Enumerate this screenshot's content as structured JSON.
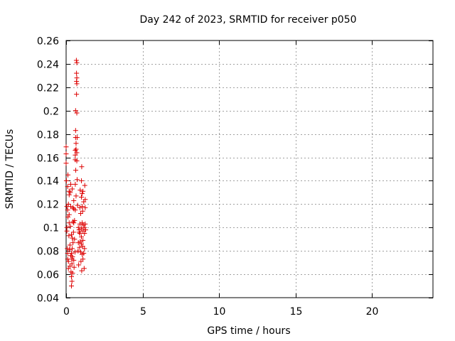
{
  "chart_data": {
    "type": "scatter",
    "title": "Day 242 of 2023, SRMTID for receiver p050",
    "xlabel": "GPS time / hours",
    "ylabel": "SRMTID / TECUs",
    "xlim": [
      0,
      24
    ],
    "ylim": [
      0.04,
      0.26
    ],
    "xticks": [
      0,
      5,
      10,
      15,
      20
    ],
    "yticks": [
      0.04,
      0.06,
      0.08,
      0.1,
      0.12,
      0.14,
      0.16,
      0.18,
      0.2,
      0.22,
      0.24,
      0.26
    ],
    "grid": true,
    "marker": "+",
    "series": [
      {
        "color": "#dd0000",
        "points": [
          [
            0.0,
            0.169
          ],
          [
            0.0,
            0.163
          ],
          [
            0.0,
            0.155
          ],
          [
            0.02,
            0.14
          ],
          [
            0.05,
            0.118
          ],
          [
            0.05,
            0.1
          ],
          [
            0.05,
            0.097
          ],
          [
            0.08,
            0.082
          ],
          [
            0.1,
            0.135
          ],
          [
            0.1,
            0.115
          ],
          [
            0.1,
            0.078
          ],
          [
            0.1,
            0.073
          ],
          [
            0.12,
            0.145
          ],
          [
            0.12,
            0.109
          ],
          [
            0.15,
            0.12
          ],
          [
            0.15,
            0.071
          ],
          [
            0.15,
            0.065
          ],
          [
            0.18,
            0.093
          ],
          [
            0.2,
            0.131
          ],
          [
            0.2,
            0.128
          ],
          [
            0.2,
            0.111
          ],
          [
            0.2,
            0.104
          ],
          [
            0.22,
            0.081
          ],
          [
            0.25,
            0.085
          ],
          [
            0.25,
            0.067
          ],
          [
            0.27,
            0.13
          ],
          [
            0.28,
            0.101
          ],
          [
            0.3,
            0.137
          ],
          [
            0.3,
            0.118
          ],
          [
            0.3,
            0.076
          ],
          [
            0.32,
            0.062
          ],
          [
            0.35,
            0.094
          ],
          [
            0.35,
            0.078
          ],
          [
            0.35,
            0.058
          ],
          [
            0.35,
            0.05
          ],
          [
            0.37,
            0.073
          ],
          [
            0.38,
            0.069
          ],
          [
            0.38,
            0.054
          ],
          [
            0.4,
            0.133
          ],
          [
            0.4,
            0.091
          ],
          [
            0.4,
            0.082
          ],
          [
            0.42,
            0.075
          ],
          [
            0.42,
            0.061
          ],
          [
            0.45,
            0.117
          ],
          [
            0.45,
            0.105
          ],
          [
            0.45,
            0.087
          ],
          [
            0.48,
            0.096
          ],
          [
            0.5,
            0.123
          ],
          [
            0.5,
            0.116
          ],
          [
            0.5,
            0.104
          ],
          [
            0.5,
            0.072
          ],
          [
            0.52,
            0.066
          ],
          [
            0.55,
            0.106
          ],
          [
            0.55,
            0.09
          ],
          [
            0.58,
            0.079
          ],
          [
            0.6,
            0.166
          ],
          [
            0.6,
            0.162
          ],
          [
            0.6,
            0.158
          ],
          [
            0.6,
            0.137
          ],
          [
            0.6,
            0.115
          ],
          [
            0.62,
            0.2
          ],
          [
            0.62,
            0.183
          ],
          [
            0.62,
            0.177
          ],
          [
            0.63,
            0.149
          ],
          [
            0.65,
            0.172
          ],
          [
            0.65,
            0.167
          ],
          [
            0.65,
            0.127
          ],
          [
            0.67,
            0.243
          ],
          [
            0.68,
            0.232
          ],
          [
            0.68,
            0.225
          ],
          [
            0.68,
            0.214
          ],
          [
            0.7,
            0.241
          ],
          [
            0.7,
            0.228
          ],
          [
            0.7,
            0.223
          ],
          [
            0.7,
            0.198
          ],
          [
            0.7,
            0.164
          ],
          [
            0.7,
            0.157
          ],
          [
            0.72,
            0.177
          ],
          [
            0.72,
            0.141
          ],
          [
            0.75,
            0.119
          ],
          [
            0.78,
            0.08
          ],
          [
            0.8,
            0.1
          ],
          [
            0.8,
            0.087
          ],
          [
            0.82,
            0.068
          ],
          [
            0.85,
            0.098
          ],
          [
            0.85,
            0.096
          ],
          [
            0.88,
            0.083
          ],
          [
            0.9,
            0.117
          ],
          [
            0.9,
            0.103
          ],
          [
            0.9,
            0.095
          ],
          [
            0.92,
            0.132
          ],
          [
            0.92,
            0.088
          ],
          [
            0.95,
            0.112
          ],
          [
            0.95,
            0.079
          ],
          [
            0.97,
            0.071
          ],
          [
            1.0,
            0.14
          ],
          [
            1.0,
            0.126
          ],
          [
            1.0,
            0.099
          ],
          [
            1.0,
            0.092
          ],
          [
            1.0,
            0.086
          ],
          [
            1.02,
            0.152
          ],
          [
            1.02,
            0.063
          ],
          [
            1.05,
            0.129
          ],
          [
            1.05,
            0.118
          ],
          [
            1.05,
            0.104
          ],
          [
            1.05,
            0.077
          ],
          [
            1.08,
            0.114
          ],
          [
            1.08,
            0.084
          ],
          [
            1.1,
            0.131
          ],
          [
            1.1,
            0.097
          ],
          [
            1.1,
            0.089
          ],
          [
            1.1,
            0.073
          ],
          [
            1.12,
            0.102
          ],
          [
            1.15,
            0.122
          ],
          [
            1.15,
            0.078
          ],
          [
            1.18,
            0.065
          ],
          [
            1.2,
            0.1
          ],
          [
            1.2,
            0.095
          ],
          [
            1.2,
            0.082
          ],
          [
            1.22,
            0.136
          ],
          [
            1.25,
            0.124
          ],
          [
            1.25,
            0.117
          ],
          [
            1.25,
            0.103
          ],
          [
            1.28,
            0.098
          ]
        ]
      }
    ]
  }
}
